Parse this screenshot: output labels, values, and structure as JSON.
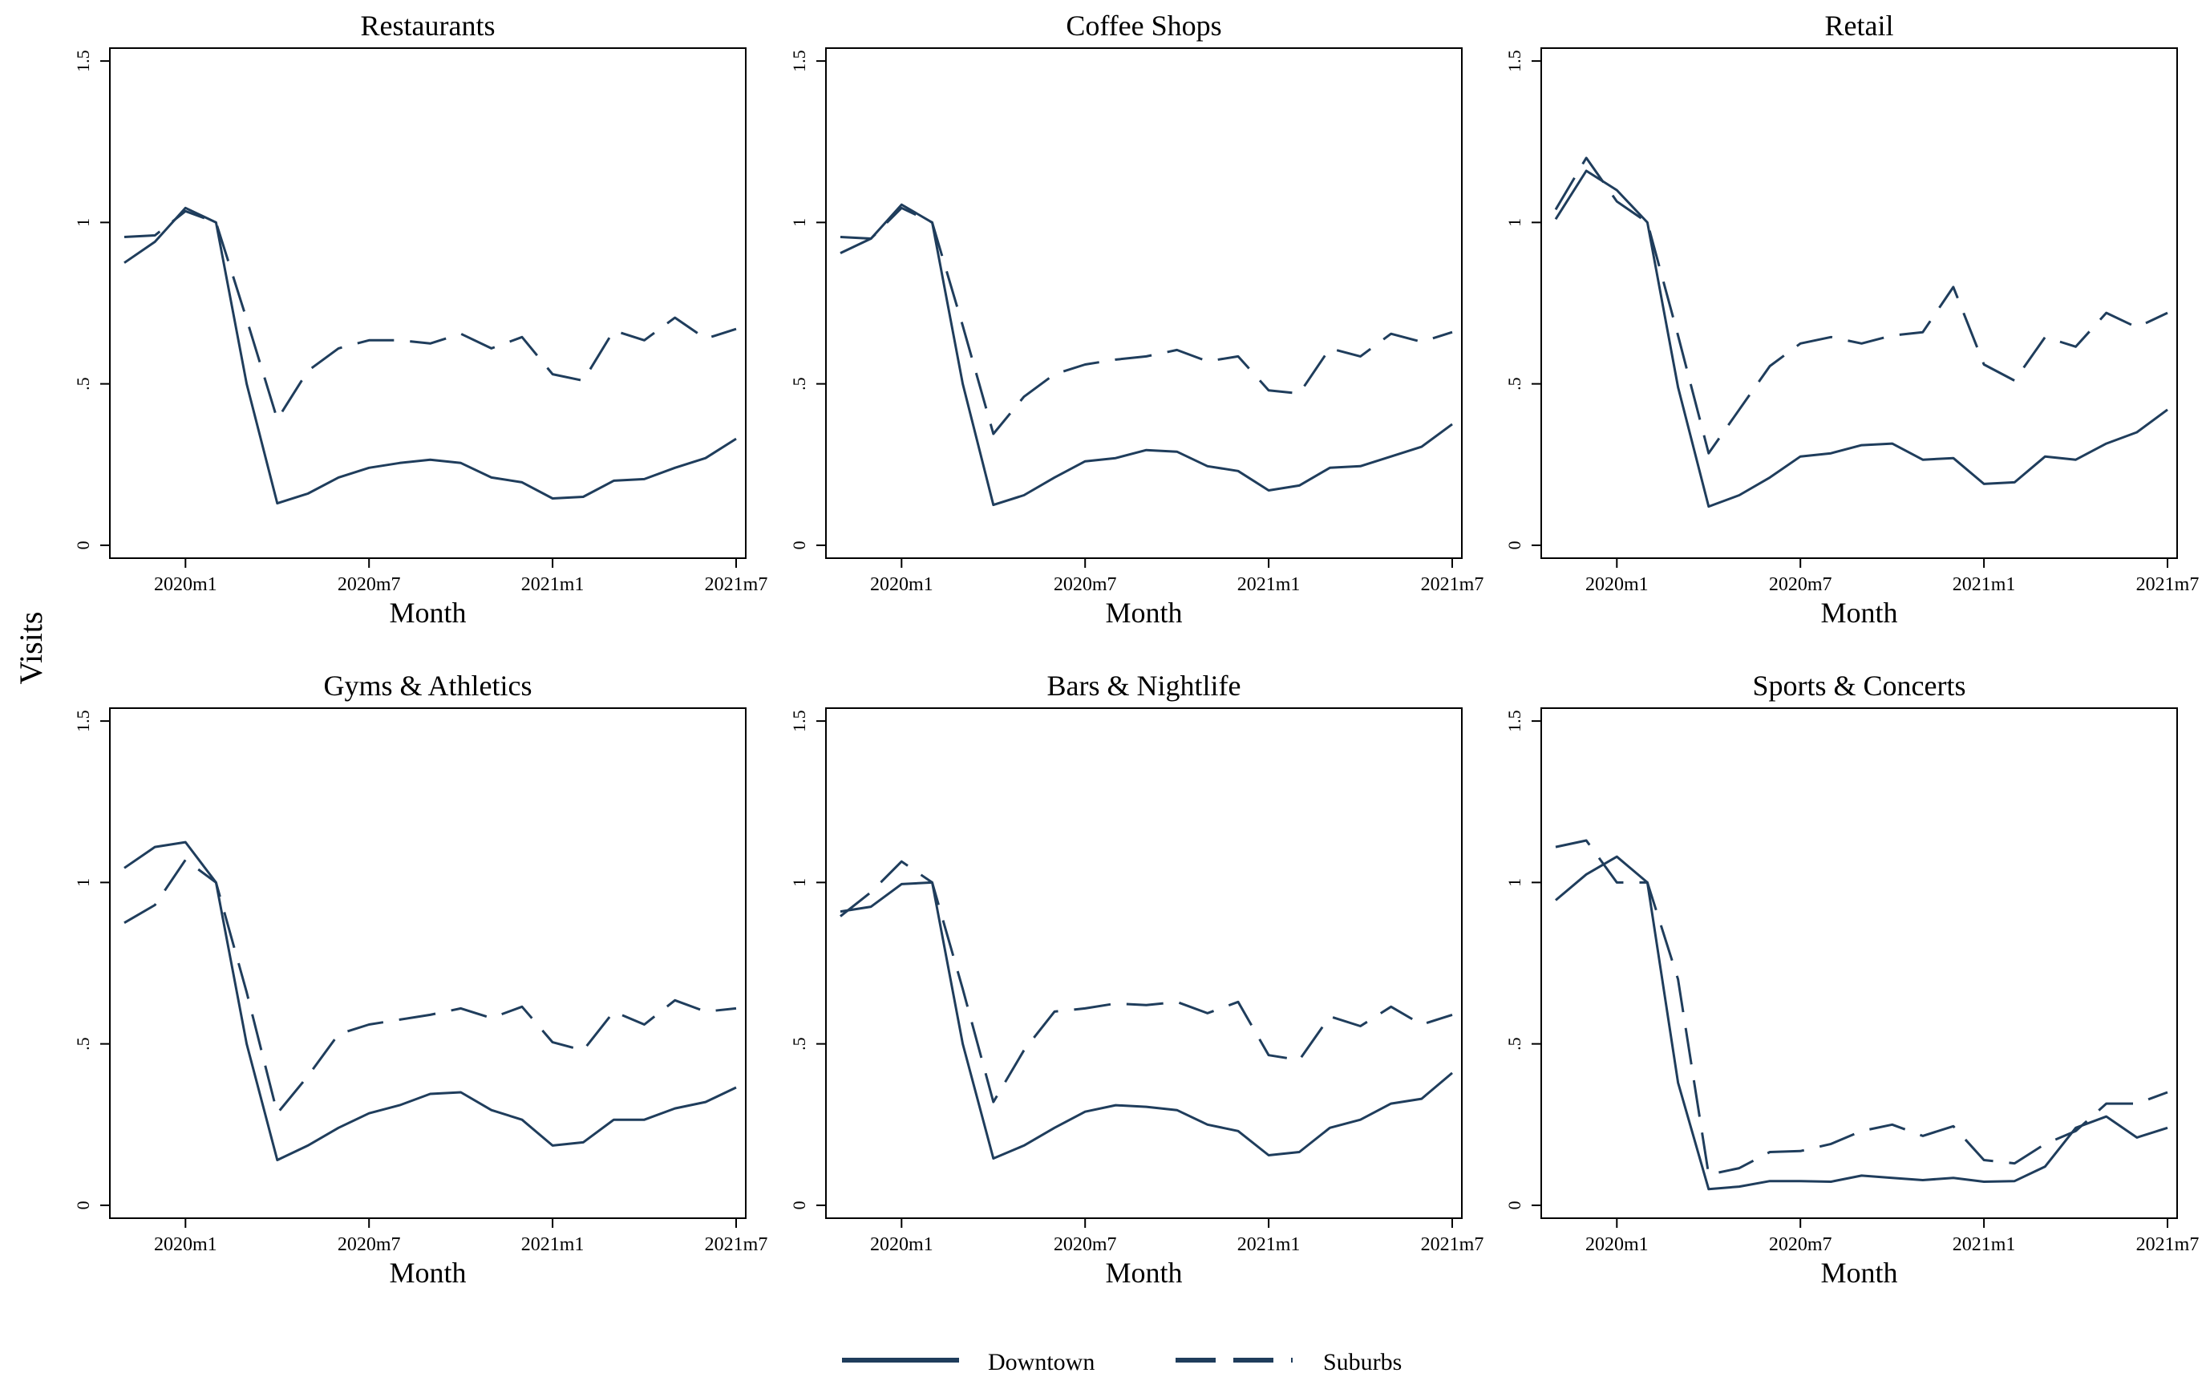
{
  "y_axis_label": "Visits",
  "legend": [
    {
      "label": "Downtown",
      "style": "solid"
    },
    {
      "label": "Suburbs",
      "style": "dashed"
    }
  ],
  "colors": {
    "line": "#1f3d5c",
    "frame": "#000000",
    "background": "#ffffff"
  },
  "chart_data": [
    {
      "type": "line",
      "title": "Restaurants",
      "xlabel": "Month",
      "ylabel": "Visits",
      "x_tick_labels": [
        "2020m1",
        "2020m7",
        "2021m1",
        "2021m7"
      ],
      "x_tick_positions": [
        0,
        6,
        12,
        18
      ],
      "y_tick_labels": [
        "0",
        ".5",
        "1",
        "1.5"
      ],
      "y_tick_values": [
        0,
        0.5,
        1,
        1.5
      ],
      "ylim": [
        -0.04,
        1.54
      ],
      "x": [
        -2,
        -1,
        0,
        1,
        2,
        3,
        4,
        5,
        6,
        7,
        8,
        9,
        10,
        11,
        12,
        13,
        14,
        15,
        16,
        17,
        18
      ],
      "series": [
        {
          "name": "Downtown",
          "values": [
            0.875,
            0.94,
            1.045,
            1.0,
            0.5,
            0.13,
            0.16,
            0.21,
            0.24,
            0.255,
            0.265,
            0.255,
            0.21,
            0.195,
            0.145,
            0.15,
            0.2,
            0.205,
            0.24,
            0.27,
            0.33
          ]
        },
        {
          "name": "Suburbs",
          "values": [
            0.955,
            0.96,
            1.035,
            1.0,
            0.7,
            0.39,
            0.54,
            0.61,
            0.635,
            0.635,
            0.625,
            0.655,
            0.61,
            0.645,
            0.53,
            0.51,
            0.665,
            0.635,
            0.705,
            0.64,
            0.67
          ]
        }
      ]
    },
    {
      "type": "line",
      "title": "Coffee Shops",
      "xlabel": "Month",
      "ylabel": "Visits",
      "x_tick_labels": [
        "2020m1",
        "2020m7",
        "2021m1",
        "2021m7"
      ],
      "x_tick_positions": [
        0,
        6,
        12,
        18
      ],
      "y_tick_labels": [
        "0",
        ".5",
        "1",
        "1.5"
      ],
      "y_tick_values": [
        0,
        0.5,
        1,
        1.5
      ],
      "ylim": [
        -0.04,
        1.54
      ],
      "x": [
        -2,
        -1,
        0,
        1,
        2,
        3,
        4,
        5,
        6,
        7,
        8,
        9,
        10,
        11,
        12,
        13,
        14,
        15,
        16,
        17,
        18
      ],
      "series": [
        {
          "name": "Downtown",
          "values": [
            0.905,
            0.95,
            1.055,
            1.0,
            0.5,
            0.125,
            0.155,
            0.21,
            0.26,
            0.27,
            0.295,
            0.29,
            0.245,
            0.23,
            0.17,
            0.185,
            0.24,
            0.245,
            0.275,
            0.305,
            0.375
          ]
        },
        {
          "name": "Suburbs",
          "values": [
            0.955,
            0.95,
            1.045,
            1.0,
            0.68,
            0.345,
            0.46,
            0.53,
            0.56,
            0.575,
            0.585,
            0.605,
            0.57,
            0.585,
            0.48,
            0.47,
            0.61,
            0.585,
            0.655,
            0.63,
            0.66
          ]
        }
      ]
    },
    {
      "type": "line",
      "title": "Retail",
      "xlabel": "Month",
      "ylabel": "Visits",
      "x_tick_labels": [
        "2020m1",
        "2020m7",
        "2021m1",
        "2021m7"
      ],
      "x_tick_positions": [
        0,
        6,
        12,
        18
      ],
      "y_tick_labels": [
        "0",
        ".5",
        "1",
        "1.5"
      ],
      "y_tick_values": [
        0,
        0.5,
        1,
        1.5
      ],
      "ylim": [
        -0.04,
        1.54
      ],
      "x": [
        -2,
        -1,
        0,
        1,
        2,
        3,
        4,
        5,
        6,
        7,
        8,
        9,
        10,
        11,
        12,
        13,
        14,
        15,
        16,
        17,
        18
      ],
      "series": [
        {
          "name": "Downtown",
          "values": [
            1.01,
            1.16,
            1.1,
            1.0,
            0.49,
            0.12,
            0.155,
            0.21,
            0.275,
            0.285,
            0.31,
            0.315,
            0.265,
            0.27,
            0.19,
            0.195,
            0.275,
            0.265,
            0.315,
            0.35,
            0.42
          ]
        },
        {
          "name": "Suburbs",
          "values": [
            1.04,
            1.2,
            1.065,
            1.0,
            0.65,
            0.285,
            0.42,
            0.555,
            0.625,
            0.645,
            0.625,
            0.65,
            0.66,
            0.8,
            0.56,
            0.51,
            0.645,
            0.615,
            0.72,
            0.675,
            0.72
          ]
        }
      ]
    },
    {
      "type": "line",
      "title": "Gyms & Athletics",
      "xlabel": "Month",
      "ylabel": "Visits",
      "x_tick_labels": [
        "2020m1",
        "2020m7",
        "2021m1",
        "2021m7"
      ],
      "x_tick_positions": [
        0,
        6,
        12,
        18
      ],
      "y_tick_labels": [
        "0",
        ".5",
        "1",
        "1.5"
      ],
      "y_tick_values": [
        0,
        0.5,
        1,
        1.5
      ],
      "ylim": [
        -0.04,
        1.54
      ],
      "x": [
        -2,
        -1,
        0,
        1,
        2,
        3,
        4,
        5,
        6,
        7,
        8,
        9,
        10,
        11,
        12,
        13,
        14,
        15,
        16,
        17,
        18
      ],
      "series": [
        {
          "name": "Downtown",
          "values": [
            1.045,
            1.11,
            1.125,
            1.0,
            0.5,
            0.14,
            0.185,
            0.24,
            0.285,
            0.31,
            0.345,
            0.35,
            0.295,
            0.265,
            0.185,
            0.195,
            0.265,
            0.265,
            0.3,
            0.32,
            0.365
          ]
        },
        {
          "name": "Suburbs",
          "values": [
            0.875,
            0.93,
            1.07,
            1.0,
            0.66,
            0.285,
            0.4,
            0.53,
            0.56,
            0.575,
            0.59,
            0.61,
            0.58,
            0.615,
            0.505,
            0.48,
            0.6,
            0.56,
            0.635,
            0.6,
            0.61
          ]
        }
      ]
    },
    {
      "type": "line",
      "title": "Bars & Nightlife",
      "xlabel": "Month",
      "ylabel": "Visits",
      "x_tick_labels": [
        "2020m1",
        "2020m7",
        "2021m1",
        "2021m7"
      ],
      "x_tick_positions": [
        0,
        6,
        12,
        18
      ],
      "y_tick_labels": [
        "0",
        ".5",
        "1",
        "1.5"
      ],
      "y_tick_values": [
        0,
        0.5,
        1,
        1.5
      ],
      "ylim": [
        -0.04,
        1.54
      ],
      "x": [
        -2,
        -1,
        0,
        1,
        2,
        3,
        4,
        5,
        6,
        7,
        8,
        9,
        10,
        11,
        12,
        13,
        14,
        15,
        16,
        17,
        18
      ],
      "series": [
        {
          "name": "Downtown",
          "values": [
            0.91,
            0.925,
            0.995,
            1.0,
            0.5,
            0.145,
            0.185,
            0.24,
            0.29,
            0.31,
            0.305,
            0.295,
            0.25,
            0.23,
            0.155,
            0.165,
            0.24,
            0.265,
            0.315,
            0.33,
            0.41
          ]
        },
        {
          "name": "Suburbs",
          "values": [
            0.895,
            0.97,
            1.065,
            1.0,
            0.67,
            0.32,
            0.48,
            0.6,
            0.61,
            0.625,
            0.62,
            0.63,
            0.595,
            0.63,
            0.465,
            0.45,
            0.585,
            0.555,
            0.615,
            0.56,
            0.59
          ]
        }
      ]
    },
    {
      "type": "line",
      "title": "Sports & Concerts",
      "xlabel": "Month",
      "ylabel": "Visits",
      "x_tick_labels": [
        "2020m1",
        "2020m7",
        "2021m1",
        "2021m7"
      ],
      "x_tick_positions": [
        0,
        6,
        12,
        18
      ],
      "y_tick_labels": [
        "0",
        ".5",
        "1",
        "1.5"
      ],
      "y_tick_values": [
        0,
        0.5,
        1,
        1.5
      ],
      "ylim": [
        -0.04,
        1.54
      ],
      "x": [
        -2,
        -1,
        0,
        1,
        2,
        3,
        4,
        5,
        6,
        7,
        8,
        9,
        10,
        11,
        12,
        13,
        14,
        15,
        16,
        17,
        18
      ],
      "series": [
        {
          "name": "Downtown",
          "values": [
            0.945,
            1.025,
            1.08,
            1.0,
            0.38,
            0.05,
            0.058,
            0.075,
            0.075,
            0.073,
            0.092,
            0.085,
            0.078,
            0.085,
            0.073,
            0.075,
            0.12,
            0.24,
            0.275,
            0.21,
            0.24
          ]
        },
        {
          "name": "Suburbs",
          "values": [
            1.11,
            1.13,
            1.0,
            1.0,
            0.7,
            0.095,
            0.115,
            0.165,
            0.168,
            0.19,
            0.23,
            0.25,
            0.215,
            0.245,
            0.14,
            0.13,
            0.19,
            0.23,
            0.315,
            0.315,
            0.35
          ]
        }
      ]
    }
  ]
}
